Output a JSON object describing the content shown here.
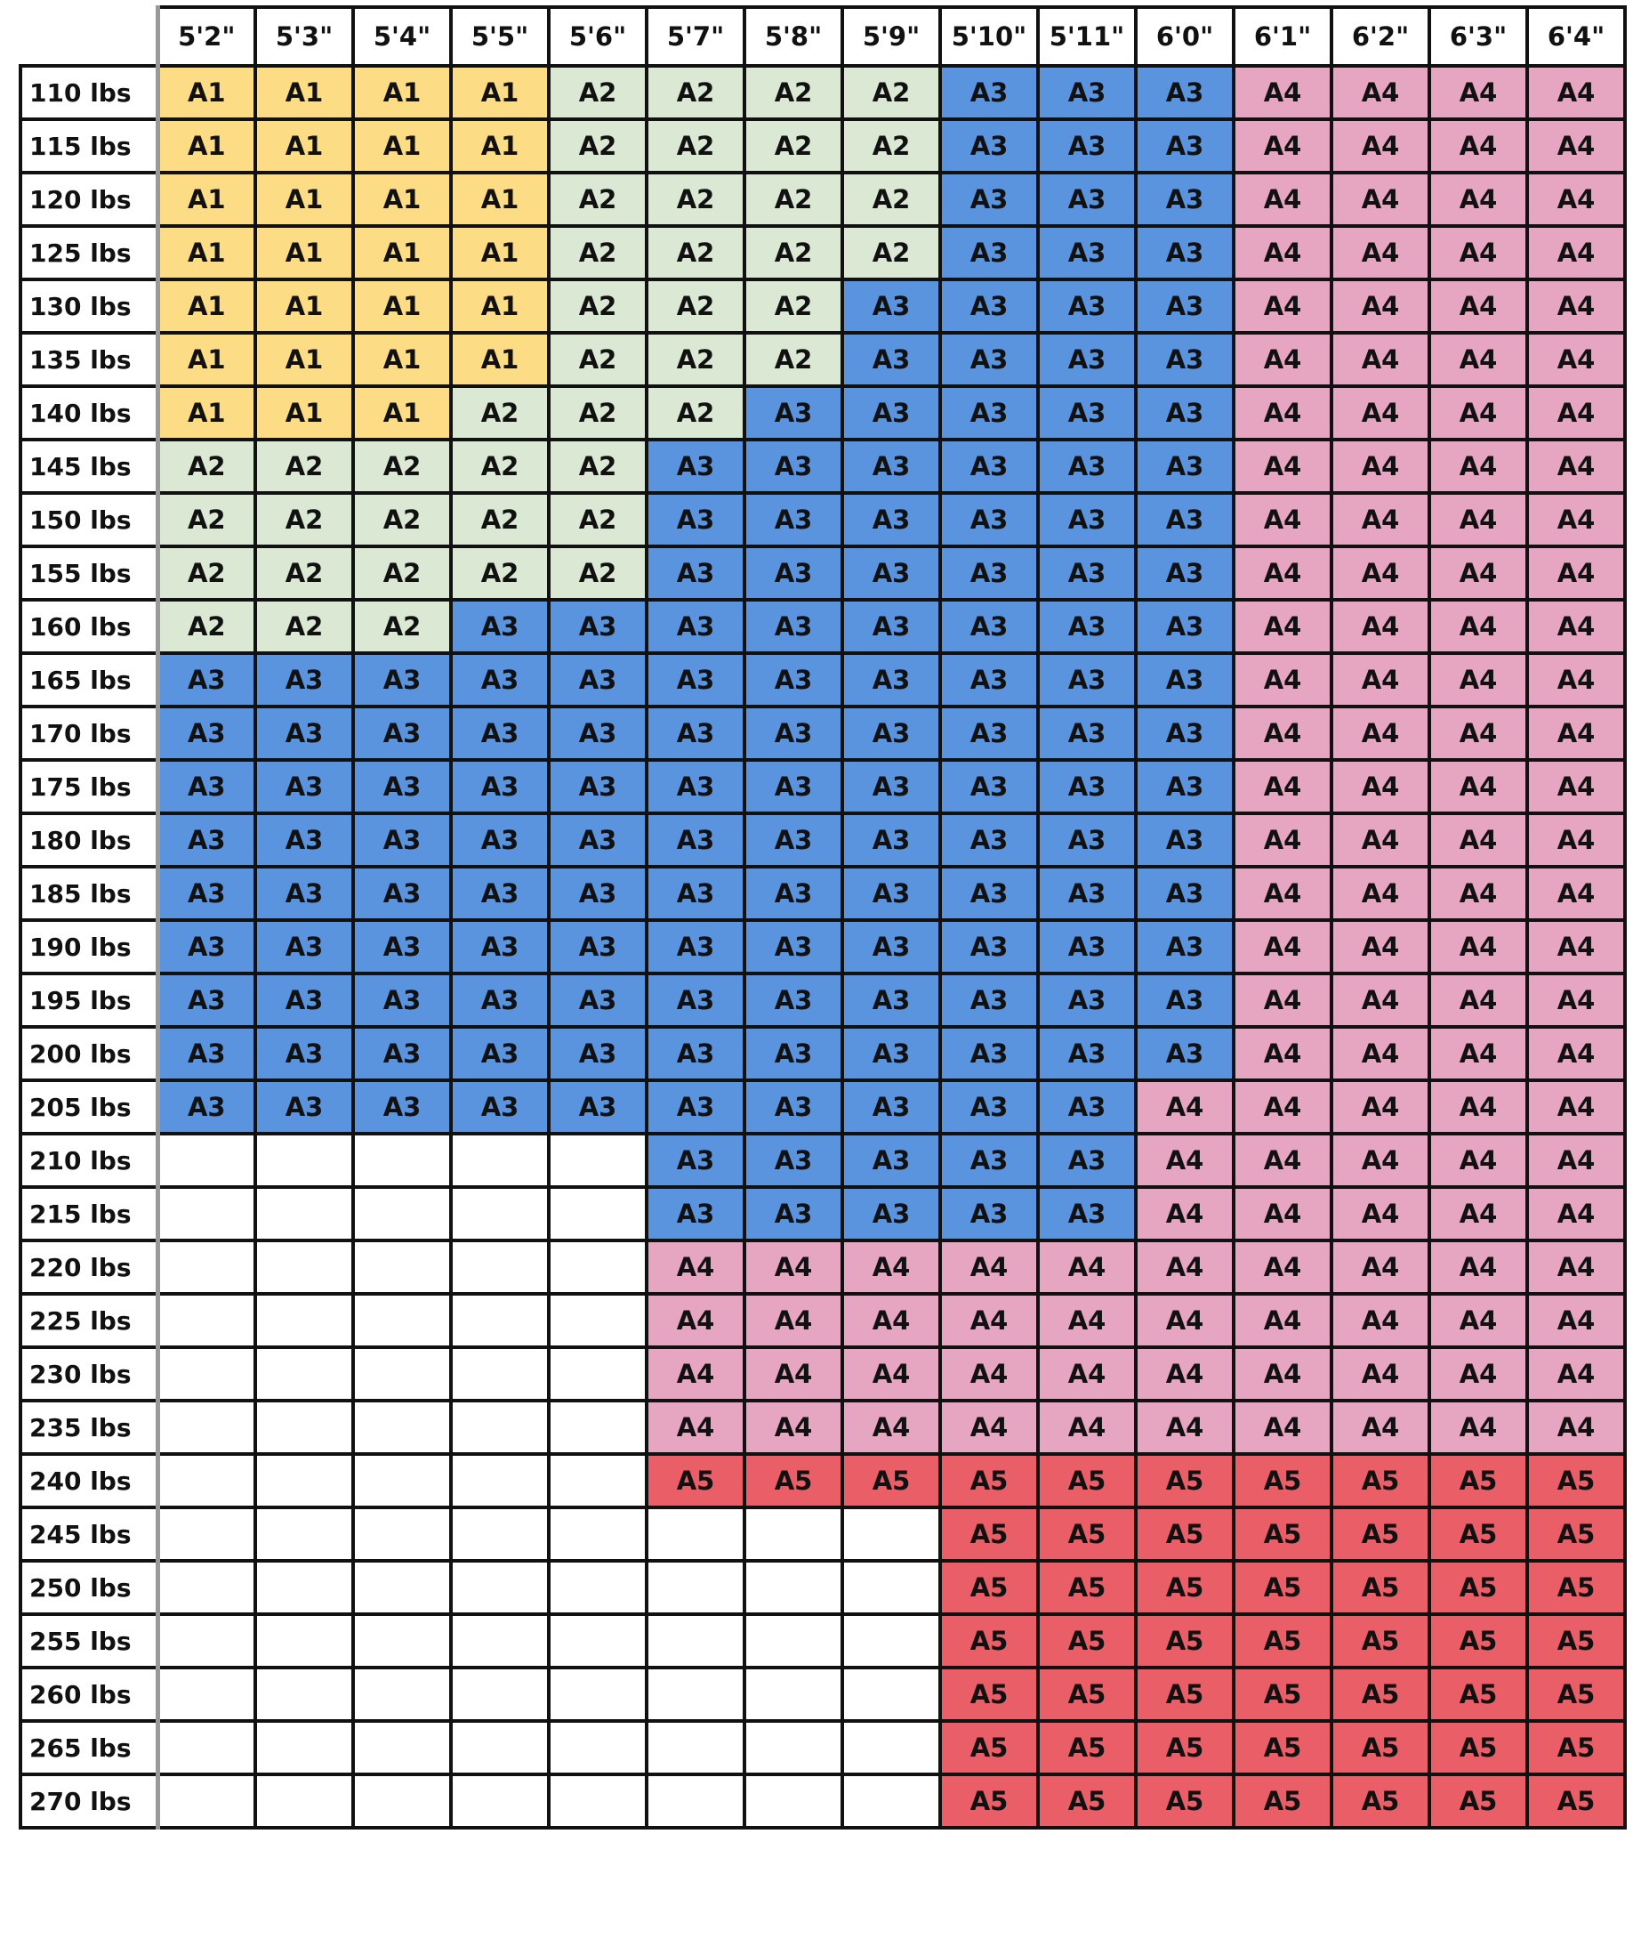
{
  "table": {
    "columns": [
      "5'2\"",
      "5'3\"",
      "5'4\"",
      "5'5\"",
      "5'6\"",
      "5'7\"",
      "5'8\"",
      "5'9\"",
      "5'10\"",
      "5'11\"",
      "6'0\"",
      "6'1\"",
      "6'2\"",
      "6'3\"",
      "6'4\""
    ],
    "colors": {
      "A1": "#fddc86",
      "A2": "#dbe8d4",
      "A3": "#5b94de",
      "A4": "#e6a6c1",
      "A5": "#ea5e67"
    },
    "rows": [
      {
        "label": "110 lbs",
        "cells": [
          "A1",
          "A1",
          "A1",
          "A1",
          "A2",
          "A2",
          "A2",
          "A2",
          "A3",
          "A3",
          "A3",
          "A4",
          "A4",
          "A4",
          "A4"
        ]
      },
      {
        "label": "115 lbs",
        "cells": [
          "A1",
          "A1",
          "A1",
          "A1",
          "A2",
          "A2",
          "A2",
          "A2",
          "A3",
          "A3",
          "A3",
          "A4",
          "A4",
          "A4",
          "A4"
        ]
      },
      {
        "label": "120 lbs",
        "cells": [
          "A1",
          "A1",
          "A1",
          "A1",
          "A2",
          "A2",
          "A2",
          "A2",
          "A3",
          "A3",
          "A3",
          "A4",
          "A4",
          "A4",
          "A4"
        ]
      },
      {
        "label": "125 lbs",
        "cells": [
          "A1",
          "A1",
          "A1",
          "A1",
          "A2",
          "A2",
          "A2",
          "A2",
          "A3",
          "A3",
          "A3",
          "A4",
          "A4",
          "A4",
          "A4"
        ]
      },
      {
        "label": "130 lbs",
        "cells": [
          "A1",
          "A1",
          "A1",
          "A1",
          "A2",
          "A2",
          "A2",
          "A3",
          "A3",
          "A3",
          "A3",
          "A4",
          "A4",
          "A4",
          "A4"
        ]
      },
      {
        "label": "135 lbs",
        "cells": [
          "A1",
          "A1",
          "A1",
          "A1",
          "A2",
          "A2",
          "A2",
          "A3",
          "A3",
          "A3",
          "A3",
          "A4",
          "A4",
          "A4",
          "A4"
        ]
      },
      {
        "label": "140 lbs",
        "cells": [
          "A1",
          "A1",
          "A1",
          "A2",
          "A2",
          "A2",
          "A3",
          "A3",
          "A3",
          "A3",
          "A3",
          "A4",
          "A4",
          "A4",
          "A4"
        ]
      },
      {
        "label": "145 lbs",
        "cells": [
          "A2",
          "A2",
          "A2",
          "A2",
          "A2",
          "A3",
          "A3",
          "A3",
          "A3",
          "A3",
          "A3",
          "A4",
          "A4",
          "A4",
          "A4"
        ]
      },
      {
        "label": "150 lbs",
        "cells": [
          "A2",
          "A2",
          "A2",
          "A2",
          "A2",
          "A3",
          "A3",
          "A3",
          "A3",
          "A3",
          "A3",
          "A4",
          "A4",
          "A4",
          "A4"
        ]
      },
      {
        "label": "155 lbs",
        "cells": [
          "A2",
          "A2",
          "A2",
          "A2",
          "A2",
          "A3",
          "A3",
          "A3",
          "A3",
          "A3",
          "A3",
          "A4",
          "A4",
          "A4",
          "A4"
        ]
      },
      {
        "label": "160 lbs",
        "cells": [
          "A2",
          "A2",
          "A2",
          "A3",
          "A3",
          "A3",
          "A3",
          "A3",
          "A3",
          "A3",
          "A3",
          "A4",
          "A4",
          "A4",
          "A4"
        ]
      },
      {
        "label": "165 lbs",
        "cells": [
          "A3",
          "A3",
          "A3",
          "A3",
          "A3",
          "A3",
          "A3",
          "A3",
          "A3",
          "A3",
          "A3",
          "A4",
          "A4",
          "A4",
          "A4"
        ]
      },
      {
        "label": "170 lbs",
        "cells": [
          "A3",
          "A3",
          "A3",
          "A3",
          "A3",
          "A3",
          "A3",
          "A3",
          "A3",
          "A3",
          "A3",
          "A4",
          "A4",
          "A4",
          "A4"
        ]
      },
      {
        "label": "175 lbs",
        "cells": [
          "A3",
          "A3",
          "A3",
          "A3",
          "A3",
          "A3",
          "A3",
          "A3",
          "A3",
          "A3",
          "A3",
          "A4",
          "A4",
          "A4",
          "A4"
        ]
      },
      {
        "label": "180 lbs",
        "cells": [
          "A3",
          "A3",
          "A3",
          "A3",
          "A3",
          "A3",
          "A3",
          "A3",
          "A3",
          "A3",
          "A3",
          "A4",
          "A4",
          "A4",
          "A4"
        ]
      },
      {
        "label": "185 lbs",
        "cells": [
          "A3",
          "A3",
          "A3",
          "A3",
          "A3",
          "A3",
          "A3",
          "A3",
          "A3",
          "A3",
          "A3",
          "A4",
          "A4",
          "A4",
          "A4"
        ]
      },
      {
        "label": "190 lbs",
        "cells": [
          "A3",
          "A3",
          "A3",
          "A3",
          "A3",
          "A3",
          "A3",
          "A3",
          "A3",
          "A3",
          "A3",
          "A4",
          "A4",
          "A4",
          "A4"
        ]
      },
      {
        "label": "195 lbs",
        "cells": [
          "A3",
          "A3",
          "A3",
          "A3",
          "A3",
          "A3",
          "A3",
          "A3",
          "A3",
          "A3",
          "A3",
          "A4",
          "A4",
          "A4",
          "A4"
        ]
      },
      {
        "label": "200 lbs",
        "cells": [
          "A3",
          "A3",
          "A3",
          "A3",
          "A3",
          "A3",
          "A3",
          "A3",
          "A3",
          "A3",
          "A3",
          "A4",
          "A4",
          "A4",
          "A4"
        ]
      },
      {
        "label": "205 lbs",
        "cells": [
          "A3",
          "A3",
          "A3",
          "A3",
          "A3",
          "A3",
          "A3",
          "A3",
          "A3",
          "A3",
          "A4",
          "A4",
          "A4",
          "A4",
          "A4"
        ]
      },
      {
        "label": "210 lbs",
        "cells": [
          null,
          null,
          null,
          null,
          null,
          "A3",
          "A3",
          "A3",
          "A3",
          "A3",
          "A4",
          "A4",
          "A4",
          "A4",
          "A4"
        ]
      },
      {
        "label": "215 lbs",
        "cells": [
          null,
          null,
          null,
          null,
          null,
          "A3",
          "A3",
          "A3",
          "A3",
          "A3",
          "A4",
          "A4",
          "A4",
          "A4",
          "A4"
        ]
      },
      {
        "label": "220 lbs",
        "cells": [
          null,
          null,
          null,
          null,
          null,
          "A4",
          "A4",
          "A4",
          "A4",
          "A4",
          "A4",
          "A4",
          "A4",
          "A4",
          "A4"
        ]
      },
      {
        "label": "225 lbs",
        "cells": [
          null,
          null,
          null,
          null,
          null,
          "A4",
          "A4",
          "A4",
          "A4",
          "A4",
          "A4",
          "A4",
          "A4",
          "A4",
          "A4"
        ]
      },
      {
        "label": "230 lbs",
        "cells": [
          null,
          null,
          null,
          null,
          null,
          "A4",
          "A4",
          "A4",
          "A4",
          "A4",
          "A4",
          "A4",
          "A4",
          "A4",
          "A4"
        ]
      },
      {
        "label": "235 lbs",
        "cells": [
          null,
          null,
          null,
          null,
          null,
          "A4",
          "A4",
          "A4",
          "A4",
          "A4",
          "A4",
          "A4",
          "A4",
          "A4",
          "A4"
        ]
      },
      {
        "label": "240 lbs",
        "cells": [
          null,
          null,
          null,
          null,
          null,
          "A5",
          "A5",
          "A5",
          "A5",
          "A5",
          "A5",
          "A5",
          "A5",
          "A5",
          "A5"
        ]
      },
      {
        "label": "245 lbs",
        "cells": [
          null,
          null,
          null,
          null,
          null,
          null,
          null,
          null,
          "A5",
          "A5",
          "A5",
          "A5",
          "A5",
          "A5",
          "A5"
        ]
      },
      {
        "label": "250 lbs",
        "cells": [
          null,
          null,
          null,
          null,
          null,
          null,
          null,
          null,
          "A5",
          "A5",
          "A5",
          "A5",
          "A5",
          "A5",
          "A5"
        ]
      },
      {
        "label": "255 lbs",
        "cells": [
          null,
          null,
          null,
          null,
          null,
          null,
          null,
          null,
          "A5",
          "A5",
          "A5",
          "A5",
          "A5",
          "A5",
          "A5"
        ]
      },
      {
        "label": "260 lbs",
        "cells": [
          null,
          null,
          null,
          null,
          null,
          null,
          null,
          null,
          "A5",
          "A5",
          "A5",
          "A5",
          "A5",
          "A5",
          "A5"
        ]
      },
      {
        "label": "265 lbs",
        "cells": [
          null,
          null,
          null,
          null,
          null,
          null,
          null,
          null,
          "A5",
          "A5",
          "A5",
          "A5",
          "A5",
          "A5",
          "A5"
        ]
      },
      {
        "label": "270 lbs",
        "cells": [
          null,
          null,
          null,
          null,
          null,
          null,
          null,
          null,
          "A5",
          "A5",
          "A5",
          "A5",
          "A5",
          "A5",
          "A5"
        ]
      }
    ]
  }
}
